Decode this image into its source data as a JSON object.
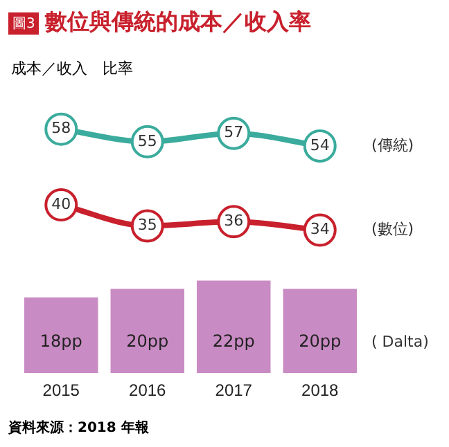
{
  "chart_data": {
    "type": "line",
    "title": "數位與傳統的成本／收入率",
    "subtitle": "成本／收入　比率",
    "annotations": [
      "圖3",
      "資料來源：2018 年報"
    ],
    "categories": [
      "2015",
      "2016",
      "2017",
      "2018"
    ],
    "series": [
      {
        "name": "(傳統)",
        "color": "#3aab9c",
        "values": [
          58,
          55,
          57,
          54
        ]
      },
      {
        "name": "(數位)",
        "color": "#c8202c",
        "values": [
          40,
          35,
          36,
          34
        ]
      },
      {
        "name": "( Dalta)",
        "type": "bar",
        "color": "#c98bc3",
        "values": [
          18,
          20,
          22,
          20
        ],
        "value_labels": [
          "18pp",
          "20pp",
          "22pp",
          "20pp"
        ]
      }
    ],
    "data_labels": true,
    "marker": "circle",
    "grid": false,
    "legend": false,
    "tick_labels": "x"
  }
}
